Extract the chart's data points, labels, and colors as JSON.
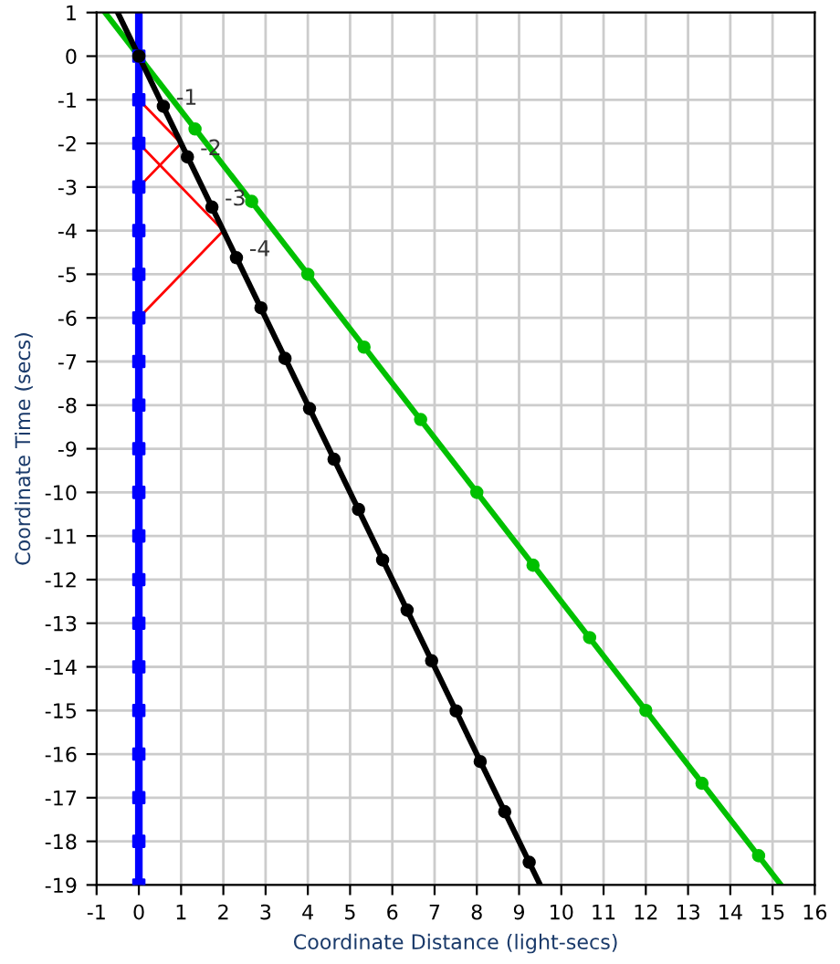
{
  "chart_data": {
    "type": "line",
    "xlabel": "Coordinate Distance (light-secs)",
    "ylabel": "Coordinate Time (secs)",
    "xlim": [
      -1,
      16
    ],
    "ylim": [
      -19,
      1
    ],
    "xticks": [
      -1,
      0,
      1,
      2,
      3,
      4,
      5,
      6,
      7,
      8,
      9,
      10,
      11,
      12,
      13,
      14,
      15,
      16
    ],
    "yticks": [
      1,
      0,
      -1,
      -2,
      -3,
      -4,
      -5,
      -6,
      -7,
      -8,
      -9,
      -10,
      -11,
      -12,
      -13,
      -14,
      -15,
      -16,
      -17,
      -18,
      -19
    ],
    "grid": true,
    "line_style": "solid",
    "series": [
      {
        "color": "#ff0000",
        "marker": "none",
        "x": [
          0,
          1,
          0
        ],
        "values": [
          -1,
          -2,
          -3
        ]
      },
      {
        "color": "#ff0000",
        "marker": "none",
        "x": [
          0,
          2,
          0
        ],
        "values": [
          -2,
          -4,
          -6
        ]
      },
      {
        "color": "#0000ff",
        "marker": "none",
        "x": [
          0,
          0
        ],
        "values": [
          1,
          -19
        ]
      },
      {
        "type": "scatter",
        "color": "#0000ff",
        "marker": "square",
        "x": [
          0,
          0,
          0,
          0,
          0,
          0,
          0,
          0,
          0,
          0,
          0,
          0,
          0,
          0,
          0,
          0,
          0,
          0,
          0,
          0
        ],
        "values": [
          0,
          -1,
          -2,
          -3,
          -4,
          -5,
          -6,
          -7,
          -8,
          -9,
          -10,
          -11,
          -12,
          -13,
          -14,
          -15,
          -16,
          -17,
          -18,
          -19
        ]
      },
      {
        "type": "line",
        "color": "#00c000",
        "marker": "none",
        "x": [
          -0.8,
          15.2
        ],
        "values": [
          1,
          -19
        ]
      },
      {
        "type": "scatter",
        "color": "#00c000",
        "marker": "circle",
        "x": [
          1.33,
          2.67,
          4,
          5.33,
          6.67,
          8,
          9.33,
          10.67,
          12,
          13.33,
          14.67
        ],
        "values": [
          -1.67,
          -3.33,
          -5,
          -6.67,
          -8.33,
          -10,
          -11.67,
          -13.33,
          -15,
          -16.67,
          -18.33
        ]
      },
      {
        "type": "line",
        "color": "#000000",
        "marker": "none",
        "x": [
          -0.5,
          9.5
        ],
        "values": [
          1,
          -19
        ]
      },
      {
        "type": "scatter",
        "color": "#000000",
        "marker": "circle",
        "x": [
          0,
          0.58,
          1.15,
          1.73,
          2.31,
          2.89,
          3.46,
          4.04,
          4.62,
          5.2,
          5.77,
          6.35,
          6.93,
          7.51,
          8.08,
          8.66,
          9.24
        ],
        "values": [
          0,
          -1.15,
          -2.31,
          -3.46,
          -4.62,
          -5.77,
          -6.93,
          -8.08,
          -9.24,
          -10.39,
          -11.55,
          -12.7,
          -13.86,
          -15.01,
          -16.17,
          -17.32,
          -18.48
        ]
      }
    ],
    "annotations": [
      {
        "text": "-1",
        "x": 0.58,
        "y": -1.15
      },
      {
        "text": "-2",
        "x": 1.15,
        "y": -2.31
      },
      {
        "text": "-3",
        "x": 1.73,
        "y": -3.46
      },
      {
        "text": "-4",
        "x": 2.31,
        "y": -4.62
      }
    ]
  }
}
